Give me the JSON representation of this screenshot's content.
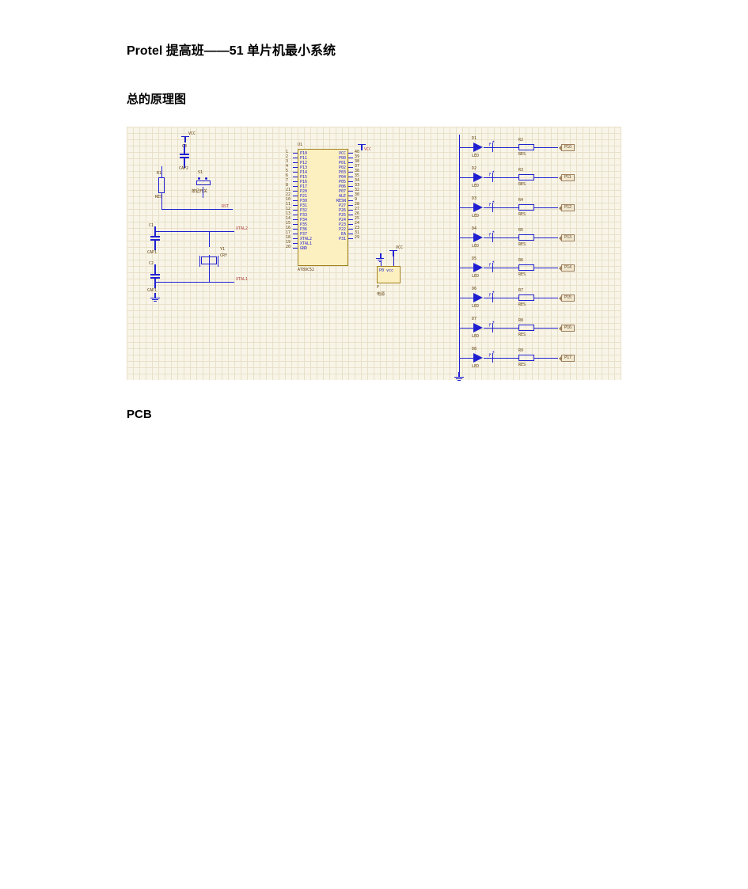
{
  "doc": {
    "title": "Protel 提高班——51 单片机最小系统",
    "section1": "总的原理图",
    "section2": "PCB"
  },
  "schematic": {
    "background_color": "#f8f5e8",
    "grid_minor_color": "#e8e0c8",
    "grid_major_color": "#d8d0b0",
    "wire_color": "#2020d0",
    "component_fill": "#fdf0c0",
    "component_border": "#a08020",
    "text_color": "#604010",
    "netlabel_color": "#b04040",
    "caps": {
      "C3": {
        "ref": "C3",
        "type": "CAP2",
        "label": "CAP2"
      },
      "C1": {
        "ref": "C1",
        "type": "CAP1",
        "label": "CAP1"
      },
      "C2": {
        "ref": "C2",
        "type": "CAP1",
        "label": "CAP1"
      }
    },
    "resistors": {
      "R1": {
        "ref": "R1",
        "value": "RES"
      },
      "R2": {
        "ref": "R2",
        "value": "RES"
      },
      "R3": {
        "ref": "R3",
        "value": "RES"
      },
      "R4": {
        "ref": "R4",
        "value": "RES"
      },
      "R5": {
        "ref": "R5",
        "value": "RES"
      },
      "R6": {
        "ref": "R6",
        "value": "RES"
      },
      "R7": {
        "ref": "R7",
        "value": "RES"
      },
      "R8": {
        "ref": "R8",
        "value": "RES"
      },
      "R9": {
        "ref": "R9",
        "value": "RES"
      }
    },
    "crystal": {
      "ref": "Y1",
      "label": "CRY"
    },
    "button": {
      "ref": "S1",
      "label": "按钮开关"
    },
    "chip": {
      "ref": "U1",
      "part": "AT89C52",
      "left_pins": [
        {
          "num": "1",
          "name": "P10"
        },
        {
          "num": "2",
          "name": "P11"
        },
        {
          "num": "3",
          "name": "P12"
        },
        {
          "num": "4",
          "name": "P13"
        },
        {
          "num": "5",
          "name": "P14"
        },
        {
          "num": "6",
          "name": "P15"
        },
        {
          "num": "7",
          "name": "P16"
        },
        {
          "num": "8",
          "name": "P17"
        },
        {
          "num": "21",
          "name": "P20"
        },
        {
          "num": "22",
          "name": "P21"
        },
        {
          "num": "10",
          "name": "P30"
        },
        {
          "num": "11",
          "name": "P31"
        },
        {
          "num": "12",
          "name": "P32"
        },
        {
          "num": "13",
          "name": "P33"
        },
        {
          "num": "14",
          "name": "P34"
        },
        {
          "num": "15",
          "name": "P35"
        },
        {
          "num": "16",
          "name": "P36"
        },
        {
          "num": "17",
          "name": "P37"
        },
        {
          "num": "18",
          "name": "XTAL2"
        },
        {
          "num": "19",
          "name": "XTAL1"
        },
        {
          "num": "20",
          "name": "GND"
        }
      ],
      "right_pins": [
        {
          "num": "40",
          "name": "VCC"
        },
        {
          "num": "39",
          "name": "P00"
        },
        {
          "num": "38",
          "name": "P01"
        },
        {
          "num": "37",
          "name": "P02"
        },
        {
          "num": "36",
          "name": "P03"
        },
        {
          "num": "35",
          "name": "P04"
        },
        {
          "num": "34",
          "name": "P05"
        },
        {
          "num": "33",
          "name": "P06"
        },
        {
          "num": "32",
          "name": "P07"
        },
        {
          "num": "30",
          "name": "ALE"
        },
        {
          "num": "9",
          "name": "RESN"
        },
        {
          "num": "28",
          "name": "P27"
        },
        {
          "num": "27",
          "name": "P26"
        },
        {
          "num": "26",
          "name": "P25"
        },
        {
          "num": "25",
          "name": "P24"
        },
        {
          "num": "24",
          "name": "P23"
        },
        {
          "num": "23",
          "name": "P22"
        },
        {
          "num": "31",
          "name": "EA"
        },
        {
          "num": "29",
          "name": "P31"
        },
        {
          "num": "",
          "name": ""
        },
        {
          "num": "",
          "name": ""
        }
      ]
    },
    "power": {
      "ref": "P",
      "label": "电源",
      "pins": "P0   vcc"
    },
    "leds": [
      {
        "ref": "D1",
        "label": "LED",
        "res": "R2",
        "reslabel": "RES",
        "port": "P10"
      },
      {
        "ref": "D2",
        "label": "LED",
        "res": "R3",
        "reslabel": "RES",
        "port": "P11"
      },
      {
        "ref": "D3",
        "label": "LED",
        "res": "R4",
        "reslabel": "RES",
        "port": "P12"
      },
      {
        "ref": "D4",
        "label": "LED",
        "res": "R5",
        "reslabel": "RES",
        "port": "P13"
      },
      {
        "ref": "D5",
        "label": "LED",
        "res": "R6",
        "reslabel": "RES",
        "port": "P14"
      },
      {
        "ref": "D6",
        "label": "LED",
        "res": "R7",
        "reslabel": "RES",
        "port": "P15"
      },
      {
        "ref": "D7",
        "label": "LED",
        "res": "R8",
        "reslabel": "RES",
        "port": "P16"
      },
      {
        "ref": "D8",
        "label": "LED",
        "res": "R9",
        "reslabel": "RES",
        "port": "P17"
      }
    ],
    "nets": {
      "vcc": "VCC",
      "rst": "RST",
      "xtal1": "XTAL1",
      "xtal2": "XTAL2"
    }
  }
}
